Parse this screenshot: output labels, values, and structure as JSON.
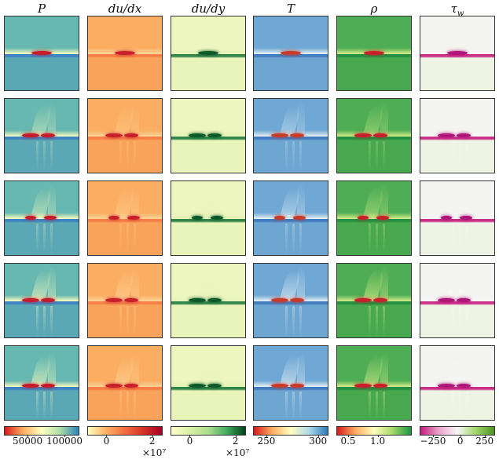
{
  "columns": [
    {
      "title": "P",
      "colormap": [
        "#d7191c",
        "#fdae61",
        "#ffffbf",
        "#abdda4",
        "#2b83ba"
      ],
      "bg": "#66b8b0",
      "band_top": "#ffffbf",
      "band_mid": "#3a7fc4",
      "blob": "#c51b2a",
      "below": "#5aa7b5"
    },
    {
      "title": "du/dx",
      "colormap": [
        "#ffffbf",
        "#fdae61",
        "#f46d43",
        "#d73027",
        "#a50026"
      ],
      "bg": "#fbad62",
      "band_top": "#fdd79a",
      "band_mid": "#f57a45",
      "blob": "#c8202a",
      "below": "#f9a25a"
    },
    {
      "title": "du/dy",
      "colormap": [
        "#ffffcc",
        "#d9f0a3",
        "#addd8e",
        "#41ab5d",
        "#00441b"
      ],
      "bg": "#eef6c0",
      "band_top": "#e6f3b6",
      "band_mid": "#1f7a3e",
      "blob": "#0c5a2a",
      "below": "#e9f4ba"
    },
    {
      "title": "T",
      "colormap": [
        "#d7191c",
        "#fdae61",
        "#ffffbf",
        "#abd9e9",
        "#2c7bb6"
      ],
      "bg": "#6fa8d4",
      "band_top": "#eaf3f6",
      "band_mid": "#3c78bd",
      "blob": "#c83a2a",
      "below": "#6ea6d2"
    },
    {
      "title": "ρ",
      "colormap": [
        "#d7191c",
        "#fdae61",
        "#ffffbf",
        "#a6d96a",
        "#1a9641"
      ],
      "bg": "#4fae55",
      "band_top": "#d9ef8b",
      "band_mid": "#1f8d3f",
      "blob": "#c8202a",
      "below": "#47a84f"
    },
    {
      "title": "τ_w",
      "colormap": [
        "#c51b7d",
        "#e9a3c9",
        "#f7f7f7",
        "#a1d76a",
        "#4d9221"
      ],
      "bg": "#f3f3ef",
      "band_top": "#f7f7f7",
      "band_mid": "#c51b7d",
      "blob": "#b0157a",
      "below": "#eef4e4"
    }
  ],
  "colorbars": [
    {
      "labels": [
        "50000",
        "100000"
      ],
      "multiplier": ""
    },
    {
      "labels": [
        "0",
        "2"
      ],
      "multiplier": "×10⁷"
    },
    {
      "labels": [
        "0",
        "2"
      ],
      "multiplier": "×10⁷"
    },
    {
      "labels": [
        "250",
        "300"
      ],
      "multiplier": ""
    },
    {
      "labels": [
        "0.5",
        "1.0"
      ],
      "multiplier": ""
    },
    {
      "labels": [
        "−250",
        "0",
        "250"
      ],
      "multiplier": ""
    }
  ],
  "rows": 5
}
